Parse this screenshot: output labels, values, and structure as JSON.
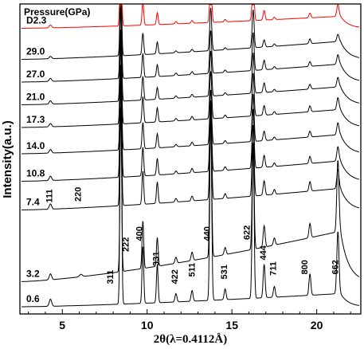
{
  "chart_data": {
    "type": "line",
    "title": "",
    "xlabel": "2θ(λ=0.4112Å)",
    "ylabel": "Intensity(a.u.)",
    "legend_title": "Pressure(GPa)",
    "xlim": [
      2.5,
      22.6
    ],
    "x_ticks": [
      5,
      10,
      15,
      20
    ],
    "y_ticks_shown": false,
    "grid": false,
    "colors": {
      "highlight": "#ff0000",
      "default": "#000000"
    },
    "peaks": [
      {
        "x": 4.3,
        "w": 0.1,
        "amp": [
          0.3,
          0.25,
          0.22,
          0.18,
          0.15,
          0.14,
          0.14,
          0.13,
          0.1,
          0.12
        ]
      },
      {
        "x": 6.1,
        "w": 0.12,
        "amp": [
          0.0,
          0.1,
          0.0,
          0.0,
          0.0,
          0.0,
          0.0,
          0.0,
          0.0,
          0.0
        ]
      },
      {
        "x": 8.45,
        "w": 0.07,
        "amp": [
          10.0,
          7.0,
          6.0,
          6.0,
          5.0,
          4.0,
          4.0,
          4.0,
          3.5,
          4.0
        ]
      },
      {
        "x": 9.75,
        "w": 0.07,
        "amp": [
          2.4,
          2.0,
          1.4,
          1.2,
          1.1,
          1.1,
          1.0,
          1.0,
          0.9,
          1.0
        ]
      },
      {
        "x": 10.6,
        "w": 0.07,
        "amp": [
          1.6,
          1.2,
          0.9,
          0.7,
          0.6,
          0.6,
          0.5,
          0.5,
          0.5,
          0.5
        ]
      },
      {
        "x": 11.7,
        "w": 0.08,
        "amp": [
          0.35,
          0.25,
          0.15,
          0.12,
          0.1,
          0.1,
          0.1,
          0.1,
          0.08,
          0.1
        ]
      },
      {
        "x": 12.65,
        "w": 0.08,
        "amp": [
          0.45,
          0.35,
          0.2,
          0.18,
          0.15,
          0.15,
          0.12,
          0.12,
          0.1,
          0.12
        ]
      },
      {
        "x": 13.75,
        "w": 0.08,
        "amp": [
          8.0,
          6.0,
          4.0,
          3.0,
          2.3,
          2.0,
          1.9,
          1.8,
          1.8,
          2.1
        ]
      },
      {
        "x": 14.6,
        "w": 0.08,
        "amp": [
          0.45,
          0.3,
          0.2,
          0.15,
          0.12,
          0.12,
          0.1,
          0.1,
          0.08,
          0.1
        ]
      },
      {
        "x": 16.25,
        "w": 0.08,
        "amp": [
          6.5,
          4.5,
          3.0,
          2.5,
          2.0,
          1.8,
          1.7,
          1.6,
          1.6,
          2.0
        ]
      },
      {
        "x": 16.9,
        "w": 0.08,
        "amp": [
          1.4,
          0.9,
          0.6,
          0.5,
          0.4,
          0.4,
          0.4,
          0.4,
          0.3,
          0.4
        ]
      },
      {
        "x": 17.5,
        "w": 0.08,
        "amp": [
          0.45,
          0.3,
          0.2,
          0.15,
          0.12,
          0.12,
          0.1,
          0.1,
          0.1,
          0.1
        ]
      },
      {
        "x": 19.6,
        "w": 0.08,
        "amp": [
          0.9,
          0.6,
          0.4,
          0.3,
          0.25,
          0.25,
          0.2,
          0.2,
          0.2,
          0.2
        ]
      },
      {
        "x": 21.25,
        "w": 0.09,
        "amp": [
          2.6,
          3.0,
          0.8,
          0.6,
          0.5,
          0.5,
          0.4,
          0.4,
          0.3,
          0.5
        ]
      }
    ],
    "series": [
      {
        "name": "0.6",
        "label": "0.6",
        "color": "#000000",
        "base": 0.0,
        "bg": 0.55
      },
      {
        "name": "3.2",
        "label": "3.2",
        "color": "#000000",
        "base": 1.05,
        "bg": 2.1
      },
      {
        "name": "7.4",
        "label": "7.4",
        "color": "#000000",
        "base": 4.05,
        "bg": 0.9
      },
      {
        "name": "10.8",
        "label": "10.8",
        "color": "#000000",
        "base": 5.25,
        "bg": 0.85
      },
      {
        "name": "14.0",
        "label": "14.0",
        "color": "#000000",
        "base": 6.4,
        "bg": 0.8
      },
      {
        "name": "17.3",
        "label": "17.3",
        "color": "#000000",
        "base": 7.5,
        "bg": 0.75
      },
      {
        "name": "21.0",
        "label": "21.0",
        "color": "#000000",
        "base": 8.45,
        "bg": 0.75
      },
      {
        "name": "27.0",
        "label": "27.0",
        "color": "#000000",
        "base": 9.4,
        "bg": 0.75
      },
      {
        "name": "29.0",
        "label": "29.0",
        "color": "#000000",
        "base": 10.35,
        "bg": 0.75
      },
      {
        "name": "D2.3",
        "label": "D2.3",
        "color": "#ff0000",
        "base": 11.65,
        "bg": 0.5
      }
    ],
    "annotations": [
      {
        "text": "111",
        "x": 4.4,
        "y": 4.35,
        "rotate": -90
      },
      {
        "text": "220",
        "x": 6.1,
        "y": 4.4,
        "rotate": -90
      },
      {
        "text": "311",
        "x": 8.0,
        "y": 0.95,
        "rotate": -90
      },
      {
        "text": "222",
        "x": 8.9,
        "y": 2.3,
        "rotate": -90
      },
      {
        "text": "400",
        "x": 9.7,
        "y": 2.75,
        "rotate": -90
      },
      {
        "text": "331",
        "x": 10.7,
        "y": 1.7,
        "rotate": -90
      },
      {
        "text": "422",
        "x": 11.8,
        "y": 0.95,
        "rotate": -90
      },
      {
        "text": "511",
        "x": 12.8,
        "y": 1.25,
        "rotate": -90
      },
      {
        "text": "440",
        "x": 13.7,
        "y": 2.75,
        "rotate": -90
      },
      {
        "text": "531",
        "x": 14.7,
        "y": 1.15,
        "rotate": -90
      },
      {
        "text": "622",
        "x": 16.05,
        "y": 2.8,
        "rotate": -90
      },
      {
        "text": "444",
        "x": 17.0,
        "y": 1.95,
        "rotate": -90
      },
      {
        "text": "711",
        "x": 17.6,
        "y": 1.3,
        "rotate": -90
      },
      {
        "text": "800",
        "x": 19.45,
        "y": 1.35,
        "rotate": -90
      },
      {
        "text": "662",
        "x": 21.25,
        "y": 1.35,
        "rotate": -90
      }
    ]
  }
}
